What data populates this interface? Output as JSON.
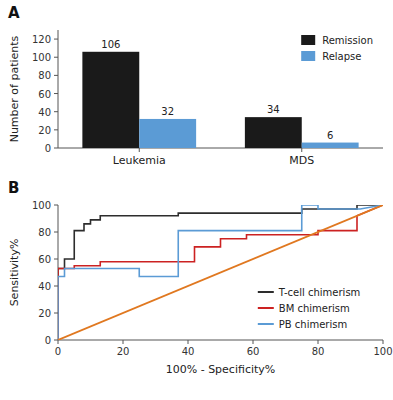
{
  "chart_data": [
    {
      "type": "bar",
      "title": "A",
      "categories": [
        "Leukemia",
        "MDS"
      ],
      "series": [
        {
          "name": "Remission",
          "color": "#1a1a1a",
          "values": [
            106,
            34
          ]
        },
        {
          "name": "Relapse",
          "color": "#5b9bd5",
          "values": [
            32,
            6
          ]
        }
      ],
      "ylabel": "Number of patients",
      "ylim": [
        0,
        130
      ],
      "yticks": [
        0,
        20,
        40,
        60,
        80,
        100,
        120
      ],
      "data_labels": true,
      "legend": "upper right"
    },
    {
      "type": "line",
      "title": "B",
      "series": [
        {
          "name": "T-cell chimerism",
          "color": "#2d2d2d",
          "x": [
            0,
            0,
            2,
            2,
            5,
            5,
            8,
            8,
            10,
            10,
            13,
            13,
            37,
            37,
            75,
            75,
            92,
            92,
            100
          ],
          "values": [
            0,
            53,
            53,
            60,
            60,
            81,
            81,
            86,
            86,
            89,
            89,
            92,
            92,
            94,
            94,
            97,
            97,
            100,
            100
          ]
        },
        {
          "name": "BM chimerism",
          "color": "#cc2222",
          "x": [
            0,
            0,
            5,
            5,
            13,
            13,
            37,
            37,
            42,
            42,
            50,
            50,
            58,
            58,
            80,
            80,
            92,
            92,
            100
          ],
          "values": [
            0,
            53,
            53,
            55,
            55,
            58,
            58,
            58,
            58,
            69,
            69,
            75,
            75,
            78,
            78,
            81,
            81,
            92,
            100
          ]
        },
        {
          "name": "PB chimerism",
          "color": "#5b9bd5",
          "x": [
            0,
            0,
            2,
            2,
            25,
            25,
            37,
            37,
            75,
            75,
            80,
            80,
            93,
            93,
            100
          ],
          "values": [
            0,
            47,
            47,
            53,
            53,
            47,
            47,
            81,
            81,
            100,
            100,
            97,
            97,
            97,
            100
          ]
        },
        {
          "color": "#e07820",
          "x": [
            0,
            100
          ],
          "values": [
            0,
            100
          ]
        }
      ],
      "xlabel": "100% - Specificity%",
      "ylabel": "Sensitivity%",
      "xlim": [
        0,
        100
      ],
      "ylim": [
        0,
        100
      ],
      "xticks": [
        0,
        20,
        40,
        60,
        80,
        100
      ],
      "yticks": [
        0,
        20,
        40,
        60,
        80,
        100
      ],
      "legend": "lower right"
    }
  ]
}
